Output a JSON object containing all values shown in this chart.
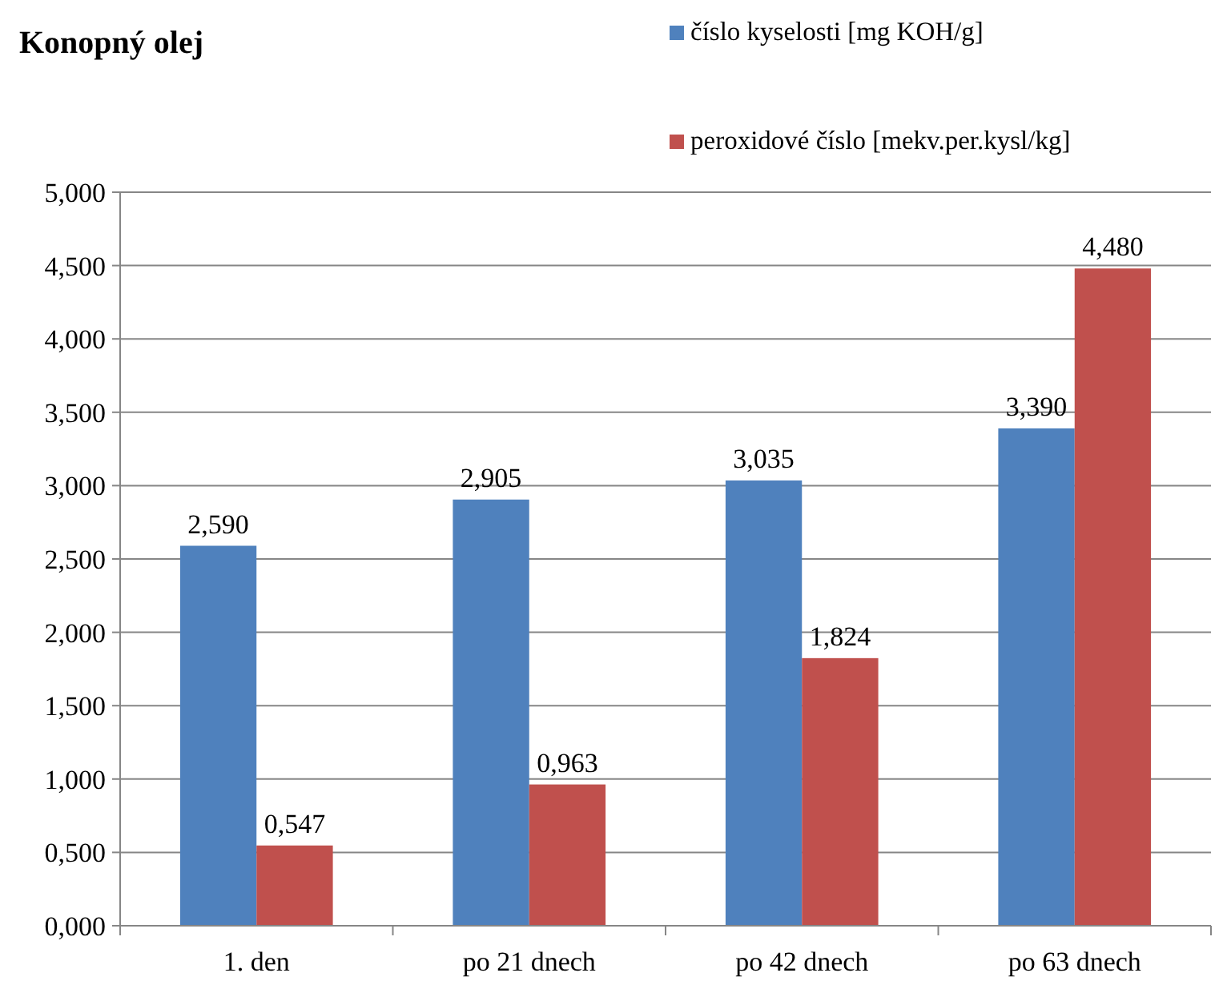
{
  "chart_data": {
    "type": "bar",
    "title": "Konopný olej",
    "categories": [
      "1. den",
      "po 21 dnech",
      "po 42 dnech",
      "po 63 dnech"
    ],
    "series": [
      {
        "name": "číslo kyselosti [mg KOH/g]",
        "color": "#4f81bd",
        "values": [
          2.59,
          2.905,
          3.035,
          3.39
        ],
        "value_labels": [
          "2,590",
          "2,905",
          "3,035",
          "3,390"
        ]
      },
      {
        "name": "peroxidové číslo [mekv.per.kysl/kg]",
        "color": "#c0504d",
        "values": [
          0.547,
          0.963,
          1.824,
          4.48
        ],
        "value_labels": [
          "0,547",
          "0,963",
          "1,824",
          "4,480"
        ]
      }
    ],
    "ylim": [
      0,
      5
    ],
    "yticks": [
      {
        "value": 0,
        "label": "0,000"
      },
      {
        "value": 0.5,
        "label": "0,500"
      },
      {
        "value": 1,
        "label": "1,000"
      },
      {
        "value": 1.5,
        "label": "1,500"
      },
      {
        "value": 2,
        "label": "2,000"
      },
      {
        "value": 2.5,
        "label": "2,500"
      },
      {
        "value": 3,
        "label": "3,000"
      },
      {
        "value": 3.5,
        "label": "3,500"
      },
      {
        "value": 4,
        "label": "4,000"
      },
      {
        "value": 4.5,
        "label": "4,500"
      },
      {
        "value": 5,
        "label": "5,000"
      }
    ],
    "grid": "y",
    "legend": "top right"
  }
}
